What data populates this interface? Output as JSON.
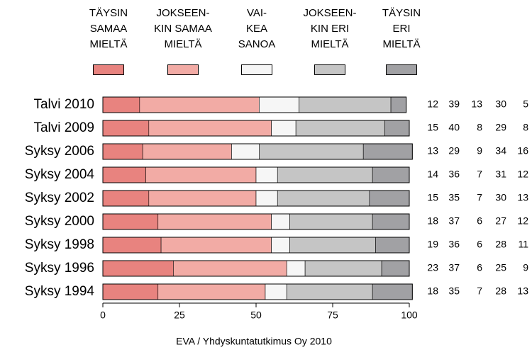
{
  "chart_data": {
    "type": "stacked-bar-horizontal",
    "categories": [
      "Talvi 2010",
      "Talvi 2009",
      "Syksy 2006",
      "Syksy 2004",
      "Syksy 2002",
      "Syksy 2000",
      "Syksy 1998",
      "Syksy 1996",
      "Syksy 1994"
    ],
    "series": [
      {
        "name": "TÄYSIN\nSAMAA\nMIELTÄ",
        "color": "#e8837f",
        "values": [
          12,
          15,
          13,
          14,
          15,
          18,
          19,
          23,
          18
        ]
      },
      {
        "name": "JOKSEEN-\nKIN SAMAA\nMIELTÄ",
        "color": "#f2aba5",
        "values": [
          39,
          40,
          29,
          36,
          35,
          37,
          36,
          37,
          35
        ]
      },
      {
        "name": "VAI-\nKEA\nSANOA",
        "color": "#f6f6f6",
        "values": [
          13,
          8,
          9,
          7,
          7,
          6,
          6,
          6,
          7
        ]
      },
      {
        "name": "JOKSEEN-\nKIN ERI\nMIELTÄ",
        "color": "#c5c5c5",
        "values": [
          30,
          29,
          34,
          31,
          30,
          27,
          28,
          25,
          28
        ]
      },
      {
        "name": "TÄYSIN\nERI\nMIELTÄ",
        "color": "#a1a1a4",
        "values": [
          5,
          8,
          16,
          12,
          13,
          12,
          11,
          9,
          13
        ]
      }
    ],
    "xlim": [
      0,
      100
    ],
    "xticks": [
      0,
      25,
      50,
      75,
      100
    ],
    "source": "EVA / Yhdyskuntatutkimus Oy 2010"
  }
}
